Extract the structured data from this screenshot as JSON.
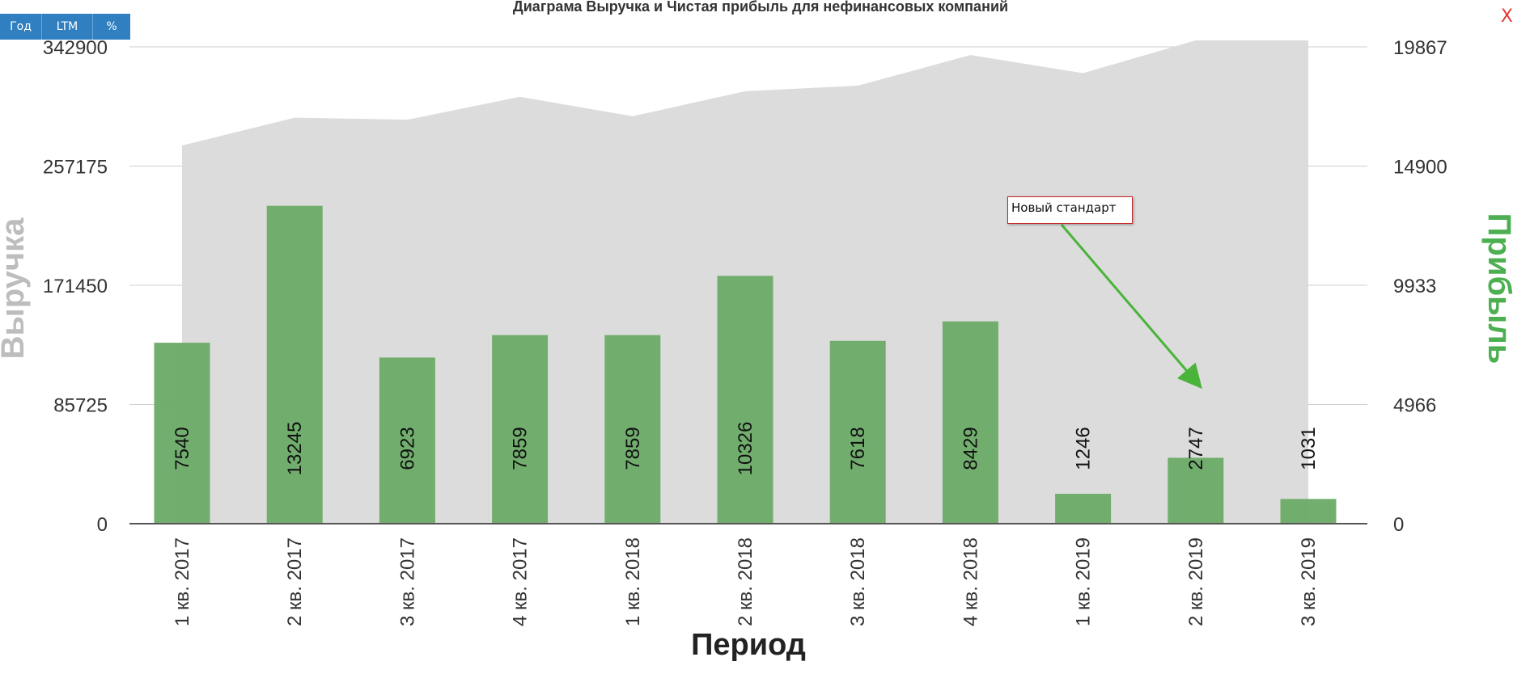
{
  "toolbar": {
    "buttons": [
      {
        "label": "Год"
      },
      {
        "label": "LTM"
      },
      {
        "label": "%"
      }
    ],
    "close_label": "X",
    "color": "#2f7fc1"
  },
  "chart_data": {
    "type": "bar",
    "title": "Диаграма Выручка и Чистая прибыль для нефинансовых компаний",
    "xlabel": "Период",
    "ylabel_left": "Выручка",
    "ylabel_right": "Прибыль",
    "categories": [
      "1 кв. 2017",
      "2 кв. 2017",
      "3 кв. 2017",
      "4 кв. 2017",
      "1 кв. 2018",
      "2 кв. 2018",
      "3 кв. 2018",
      "4 кв. 2018",
      "1 кв. 2019",
      "2 кв. 2019",
      "3 кв. 2019"
    ],
    "left_axis": {
      "ticks": [
        "0",
        "85725",
        "171450",
        "257175",
        "342900"
      ],
      "ylim": [
        0,
        342900
      ]
    },
    "right_axis": {
      "ticks": [
        "0",
        "4966",
        "9933",
        "14900",
        "19867"
      ],
      "ylim": [
        0,
        19867
      ]
    },
    "series": [
      {
        "name": "Выручка",
        "kind": "area",
        "axis": "left",
        "color": "#dcdcdc",
        "values": [
          272000,
          292000,
          290500,
          307000,
          293000,
          311000,
          315000,
          337000,
          324000,
          350000,
          350000
        ]
      },
      {
        "name": "Прибыль",
        "kind": "bar",
        "axis": "right",
        "color": "#6aab67",
        "values": [
          7540,
          13245,
          6923,
          7859,
          7859,
          10326,
          7618,
          8429,
          1246,
          2747,
          1031
        ],
        "labels": [
          "7540",
          "13245",
          "6923",
          "7859",
          "7859",
          "10326",
          "7618",
          "8429",
          "1246",
          "2747",
          "1031"
        ]
      }
    ],
    "annotation": {
      "text": "Новый стандарт",
      "points_to": "2 кв. 2019",
      "arrow_color": "#4ab33a",
      "border_color": "#c62828"
    },
    "grid": true,
    "title_color": "#333333",
    "left_label_color": "#bdbdbd",
    "right_label_color": "#4caf50"
  }
}
